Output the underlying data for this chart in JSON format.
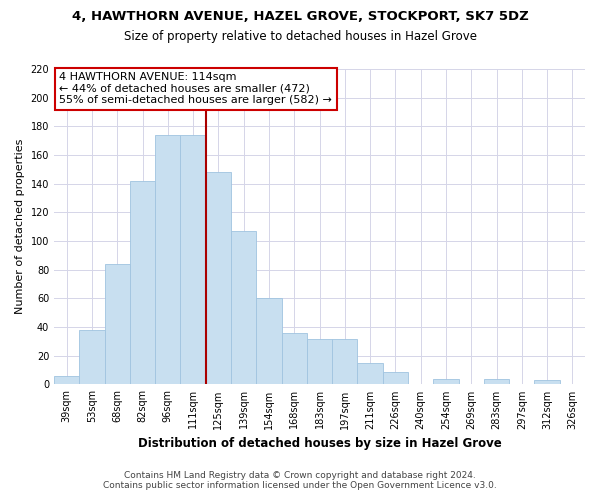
{
  "title": "4, HAWTHORN AVENUE, HAZEL GROVE, STOCKPORT, SK7 5DZ",
  "subtitle": "Size of property relative to detached houses in Hazel Grove",
  "xlabel": "Distribution of detached houses by size in Hazel Grove",
  "ylabel": "Number of detached properties",
  "categories": [
    "39sqm",
    "53sqm",
    "68sqm",
    "82sqm",
    "96sqm",
    "111sqm",
    "125sqm",
    "139sqm",
    "154sqm",
    "168sqm",
    "183sqm",
    "197sqm",
    "211sqm",
    "226sqm",
    "240sqm",
    "254sqm",
    "269sqm",
    "283sqm",
    "297sqm",
    "312sqm",
    "326sqm"
  ],
  "values": [
    6,
    38,
    84,
    142,
    174,
    174,
    148,
    107,
    60,
    36,
    32,
    32,
    15,
    9,
    0,
    4,
    0,
    4,
    0,
    3,
    0
  ],
  "bar_color": "#c8dff0",
  "bar_edge_color": "#a0c4e0",
  "vline_x_index": 5,
  "vline_color": "#aa0000",
  "ylim": [
    0,
    220
  ],
  "yticks": [
    0,
    20,
    40,
    60,
    80,
    100,
    120,
    140,
    160,
    180,
    200,
    220
  ],
  "annotation_title": "4 HAWTHORN AVENUE: 114sqm",
  "annotation_line1": "← 44% of detached houses are smaller (472)",
  "annotation_line2": "55% of semi-detached houses are larger (582) →",
  "annotation_box_color": "#ffffff",
  "annotation_box_edge": "#cc0000",
  "footer1": "Contains HM Land Registry data © Crown copyright and database right 2024.",
  "footer2": "Contains public sector information licensed under the Open Government Licence v3.0."
}
